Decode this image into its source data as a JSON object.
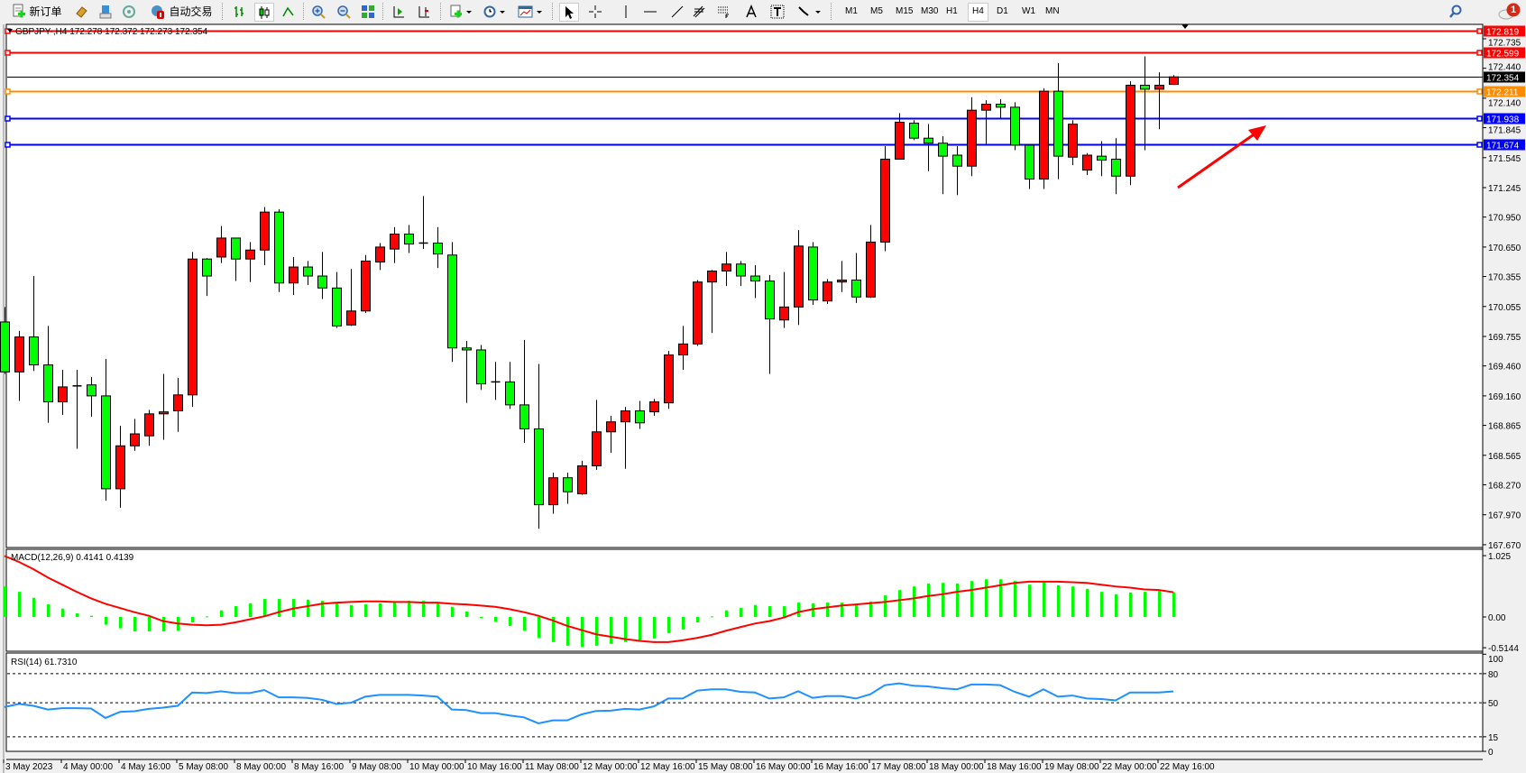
{
  "toolbar": {
    "new_order_label": "新订单",
    "auto_trade_label": "自动交易",
    "timeframes": [
      "M1",
      "M5",
      "M15",
      "M30",
      "H1",
      "H4",
      "D1",
      "W1",
      "MN"
    ],
    "active_timeframe": "H4",
    "notification_count": "1",
    "icons": [
      "new-order-icon",
      "market-watch-icon",
      "navigator-icon",
      "signal-icon",
      "auto-trade-icon",
      "bar-chart-icon",
      "candlestick-icon",
      "line-chart-icon",
      "zoom-in-icon",
      "zoom-out-icon",
      "tile-windows-icon",
      "auto-scroll-icon",
      "chart-shift-icon",
      "indicators-icon",
      "periods-icon",
      "templates-icon",
      "cursor-icon",
      "crosshair-icon",
      "vertical-line-icon",
      "horizontal-line-icon",
      "trendline-icon",
      "fibonacci-icon",
      "fibonacci-fan-icon",
      "text-icon",
      "text-label-icon",
      "arrows-icon",
      "search-icon",
      "notification-icon"
    ]
  },
  "chart": {
    "header": "GBPJPY-,H4  172.278 172.372 172.273 172.354",
    "symbol": "GBPJPY-",
    "timeframe": "H4",
    "ohlc": {
      "open": 172.278,
      "high": 172.372,
      "low": 172.273,
      "close": 172.354
    },
    "colors": {
      "up": "#ff0000",
      "down": "#00ff00",
      "wick": "#000000",
      "macd_hist": "#00ff00",
      "macd_signal": "#ff0000",
      "rsi": "#1e90ff"
    },
    "levels": [
      {
        "price": "172.819",
        "color": "#ff0000"
      },
      {
        "price": "172.599",
        "color": "#ff0000"
      },
      {
        "price": "172.354",
        "color": "#000000"
      },
      {
        "price": "172.211",
        "color": "#ff8c00"
      },
      {
        "price": "171.938",
        "color": "#0000ff"
      },
      {
        "price": "171.674",
        "color": "#0000ff"
      }
    ],
    "annotation": {
      "type": "arrow",
      "color": "#ff0000",
      "direction": "up-right"
    }
  },
  "chart_data": [
    {
      "type": "candlestick",
      "title": "GBPJPY-,H4",
      "price_ticks": [
        "172.735",
        "172.440",
        "172.140",
        "171.845",
        "171.545",
        "171.245",
        "170.950",
        "170.650",
        "170.355",
        "170.055",
        "169.755",
        "169.460",
        "169.160",
        "168.865",
        "168.565",
        "168.270",
        "167.970",
        "167.670"
      ],
      "ylim": [
        167.67,
        172.735
      ],
      "time_labels": [
        "3 May 2023",
        "4 May 00:00",
        "4 May 16:00",
        "5 May 08:00",
        "8 May 00:00",
        "8 May 16:00",
        "9 May 08:00",
        "10 May 00:00",
        "10 May 16:00",
        "11 May 08:00",
        "12 May 00:00",
        "12 May 16:00",
        "15 May 08:00",
        "16 May 00:00",
        "16 May 16:00",
        "17 May 08:00",
        "18 May 00:00",
        "18 May 16:00",
        "19 May 08:00",
        "22 May 00:00",
        "22 May 16:00"
      ],
      "ohlc_fields": [
        "open",
        "high",
        "low",
        "close"
      ],
      "candles": [
        [
          169.9,
          170.05,
          169.38,
          169.4
        ],
        [
          169.4,
          169.81,
          169.11,
          169.75
        ],
        [
          169.75,
          170.36,
          169.41,
          169.47
        ],
        [
          169.47,
          169.86,
          168.89,
          169.1
        ],
        [
          169.1,
          169.42,
          168.97,
          169.25
        ],
        [
          169.26,
          169.42,
          168.63,
          169.26
        ],
        [
          169.27,
          169.35,
          168.95,
          169.16
        ],
        [
          169.16,
          169.53,
          168.11,
          168.23
        ],
        [
          168.23,
          168.86,
          168.04,
          168.66
        ],
        [
          168.66,
          168.93,
          168.61,
          168.78
        ],
        [
          168.76,
          169.02,
          168.66,
          168.98
        ],
        [
          168.98,
          169.38,
          168.72,
          169.0
        ],
        [
          169.01,
          169.34,
          168.8,
          169.17
        ],
        [
          169.17,
          170.6,
          169.05,
          170.53
        ],
        [
          170.53,
          170.54,
          170.16,
          170.36
        ],
        [
          170.55,
          170.86,
          170.49,
          170.74
        ],
        [
          170.74,
          170.74,
          170.31,
          170.53
        ],
        [
          170.53,
          170.7,
          170.3,
          170.62
        ],
        [
          170.62,
          171.05,
          170.47,
          171.0
        ],
        [
          171.0,
          171.03,
          170.2,
          170.29
        ],
        [
          170.29,
          170.55,
          170.17,
          170.45
        ],
        [
          170.45,
          170.51,
          170.27,
          170.36
        ],
        [
          170.36,
          170.6,
          170.13,
          170.24
        ],
        [
          170.24,
          170.4,
          169.84,
          169.86
        ],
        [
          169.87,
          170.43,
          169.86,
          170.01
        ],
        [
          170.01,
          170.57,
          169.99,
          170.51
        ],
        [
          170.5,
          170.69,
          170.42,
          170.65
        ],
        [
          170.63,
          170.85,
          170.49,
          170.78
        ],
        [
          170.78,
          170.87,
          170.59,
          170.68
        ],
        [
          170.69,
          171.16,
          170.63,
          170.69
        ],
        [
          170.69,
          170.85,
          170.44,
          170.58
        ],
        [
          170.57,
          170.7,
          169.5,
          169.64
        ],
        [
          169.64,
          169.71,
          169.09,
          169.62
        ],
        [
          169.62,
          169.67,
          169.22,
          169.28
        ],
        [
          169.3,
          169.5,
          169.12,
          169.3
        ],
        [
          169.3,
          169.5,
          169.03,
          169.07
        ],
        [
          169.07,
          169.72,
          168.69,
          168.83
        ],
        [
          168.83,
          169.48,
          167.83,
          168.07
        ],
        [
          168.07,
          168.39,
          167.98,
          168.34
        ],
        [
          168.34,
          168.39,
          168.08,
          168.2
        ],
        [
          168.18,
          168.51,
          168.17,
          168.46
        ],
        [
          168.46,
          169.12,
          168.42,
          168.8
        ],
        [
          168.8,
          168.96,
          168.59,
          168.9
        ],
        [
          168.9,
          169.05,
          168.43,
          169.01
        ],
        [
          169.01,
          169.11,
          168.83,
          168.89
        ],
        [
          169.0,
          169.13,
          168.96,
          169.1
        ],
        [
          169.09,
          169.61,
          169.03,
          169.57
        ],
        [
          169.57,
          169.86,
          169.42,
          169.68
        ],
        [
          169.68,
          170.32,
          169.66,
          170.3
        ],
        [
          170.3,
          170.42,
          169.79,
          170.41
        ],
        [
          170.41,
          170.6,
          170.26,
          170.48
        ],
        [
          170.48,
          170.51,
          170.26,
          170.36
        ],
        [
          170.36,
          170.47,
          170.14,
          170.31
        ],
        [
          170.31,
          170.37,
          169.38,
          169.93
        ],
        [
          169.92,
          170.4,
          169.84,
          170.05
        ],
        [
          170.05,
          170.82,
          169.87,
          170.66
        ],
        [
          170.65,
          170.7,
          170.07,
          170.12
        ],
        [
          170.11,
          170.33,
          170.08,
          170.3
        ],
        [
          170.3,
          170.51,
          170.2,
          170.32
        ],
        [
          170.32,
          170.59,
          170.09,
          170.15
        ],
        [
          170.15,
          170.87,
          170.14,
          170.7
        ],
        [
          170.7,
          171.66,
          170.61,
          171.53
        ],
        [
          171.53,
          171.99,
          171.53,
          171.9
        ],
        [
          171.89,
          171.92,
          171.72,
          171.74
        ],
        [
          171.74,
          171.88,
          171.41,
          171.69
        ],
        [
          171.69,
          171.76,
          171.18,
          171.56
        ],
        [
          171.57,
          171.66,
          171.17,
          171.46
        ],
        [
          171.46,
          172.15,
          171.36,
          172.02
        ],
        [
          172.02,
          172.12,
          171.68,
          172.08
        ],
        [
          172.08,
          172.13,
          171.94,
          172.05
        ],
        [
          172.05,
          172.1,
          171.62,
          171.67
        ],
        [
          171.67,
          171.67,
          171.23,
          171.33
        ],
        [
          171.33,
          172.24,
          171.23,
          172.21
        ],
        [
          172.21,
          172.49,
          171.33,
          171.56
        ],
        [
          171.55,
          171.92,
          171.47,
          171.88
        ],
        [
          171.42,
          171.59,
          171.37,
          171.57
        ],
        [
          171.56,
          171.71,
          171.36,
          171.52
        ],
        [
          171.53,
          171.74,
          171.18,
          171.36
        ],
        [
          171.36,
          172.31,
          171.27,
          172.27
        ],
        [
          172.27,
          172.56,
          171.62,
          172.23
        ],
        [
          172.23,
          172.4,
          171.83,
          172.27
        ],
        [
          172.278,
          172.372,
          172.273,
          172.354
        ]
      ]
    },
    {
      "type": "bar",
      "title": "MACD(12,26,9) 0.4141 0.4139",
      "label": "MACD(12,26,9)",
      "current": [
        "0.4141",
        "0.4139"
      ],
      "ticks": [
        "1.025",
        "0.00",
        "-0.5144"
      ],
      "ylim": [
        -0.5144,
        1.025
      ],
      "histogram": [
        0.51,
        0.42,
        0.32,
        0.21,
        0.14,
        0.06,
        0.02,
        -0.13,
        -0.19,
        -0.24,
        -0.24,
        -0.24,
        -0.23,
        -0.09,
        0.01,
        0.11,
        0.18,
        0.23,
        0.3,
        0.3,
        0.3,
        0.29,
        0.27,
        0.23,
        0.2,
        0.21,
        0.23,
        0.24,
        0.27,
        0.27,
        0.24,
        0.17,
        0.09,
        -0.01,
        -0.08,
        -0.15,
        -0.23,
        -0.35,
        -0.42,
        -0.48,
        -0.5,
        -0.48,
        -0.45,
        -0.42,
        -0.39,
        -0.36,
        -0.27,
        -0.21,
        -0.09,
        0.01,
        0.11,
        0.15,
        0.2,
        0.18,
        0.18,
        0.24,
        0.23,
        0.24,
        0.24,
        0.21,
        0.26,
        0.36,
        0.45,
        0.51,
        0.56,
        0.57,
        0.56,
        0.6,
        0.63,
        0.63,
        0.6,
        0.54,
        0.59,
        0.53,
        0.51,
        0.47,
        0.42,
        0.38,
        0.41,
        0.42,
        0.44,
        0.4141
      ],
      "signal": [
        1.02,
        0.92,
        0.8,
        0.66,
        0.54,
        0.42,
        0.31,
        0.22,
        0.15,
        0.08,
        0.02,
        -0.07,
        -0.11,
        -0.13,
        -0.14,
        -0.13,
        -0.09,
        -0.04,
        0.01,
        0.08,
        0.14,
        0.18,
        0.22,
        0.24,
        0.25,
        0.26,
        0.26,
        0.25,
        0.25,
        0.24,
        0.24,
        0.22,
        0.21,
        0.19,
        0.17,
        0.13,
        0.08,
        0.02,
        -0.06,
        -0.15,
        -0.22,
        -0.29,
        -0.33,
        -0.37,
        -0.4,
        -0.42,
        -0.42,
        -0.39,
        -0.35,
        -0.3,
        -0.23,
        -0.17,
        -0.11,
        -0.07,
        -0.01,
        0.08,
        0.13,
        0.16,
        0.19,
        0.21,
        0.23,
        0.25,
        0.28,
        0.31,
        0.35,
        0.38,
        0.42,
        0.45,
        0.49,
        0.53,
        0.57,
        0.59,
        0.59,
        0.59,
        0.58,
        0.57,
        0.54,
        0.51,
        0.49,
        0.46,
        0.45,
        0.4139
      ]
    },
    {
      "type": "line",
      "title": "RSI(14) 61.7310",
      "label": "RSI(14)",
      "current": "61.7310",
      "ticks": [
        "100",
        "80",
        "50",
        "15",
        "0"
      ],
      "levels": [
        80,
        50,
        15
      ],
      "ylim": [
        0,
        100
      ],
      "values": [
        45.6,
        48.8,
        46.9,
        43.1,
        44.4,
        44.4,
        44.1,
        34.4,
        40.6,
        41.3,
        43.8,
        45.0,
        46.9,
        60.6,
        60.0,
        61.9,
        60.0,
        60.0,
        63.1,
        55.6,
        55.6,
        55.0,
        53.1,
        48.8,
        50.0,
        56.3,
        58.1,
        58.1,
        58.1,
        57.5,
        56.3,
        43.1,
        42.5,
        39.4,
        39.4,
        36.9,
        35.0,
        28.8,
        31.9,
        31.9,
        38.1,
        41.6,
        41.9,
        43.8,
        43.1,
        46.3,
        54.4,
        54.4,
        62.5,
        63.8,
        63.8,
        61.3,
        60.6,
        54.4,
        55.6,
        61.9,
        55.0,
        56.9,
        56.9,
        54.4,
        58.8,
        68.1,
        70.0,
        67.5,
        66.9,
        65.0,
        63.8,
        68.8,
        68.8,
        68.1,
        61.3,
        56.3,
        63.8,
        56.3,
        57.5,
        54.4,
        53.8,
        52.5,
        60.6,
        60.6,
        60.6,
        61.731
      ]
    }
  ]
}
